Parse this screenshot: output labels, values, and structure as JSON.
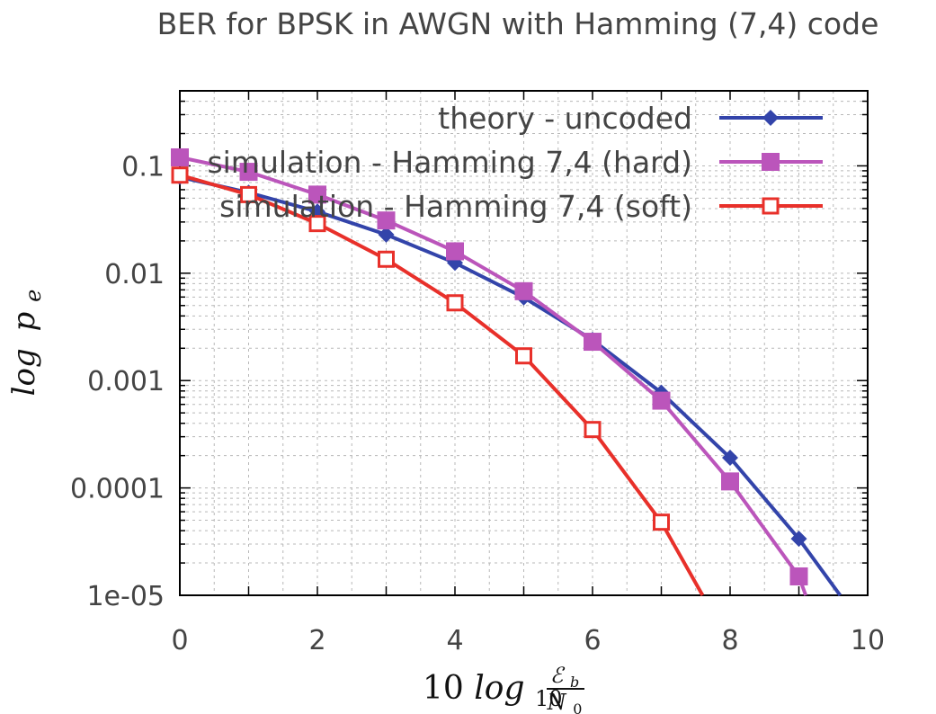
{
  "chart_data": {
    "type": "line",
    "title": "BER for BPSK in AWGN with Hamming (7,4) code",
    "xlabel": {
      "main": "10 ",
      "func": "log",
      "func_sub": "10",
      "frac_num": "ℰ",
      "frac_num_sub": "b",
      "frac_den": "N",
      "frac_den_sub": "0"
    },
    "ylabel": {
      "func": "log",
      "var": "p",
      "var_sub": "e"
    },
    "xlim": [
      0,
      10
    ],
    "ylim": [
      1e-05,
      0.5
    ],
    "yscale": "log",
    "grid": true,
    "legend_position": "top-right",
    "x_ticks": [
      "0",
      "2",
      "4",
      "6",
      "8",
      "10"
    ],
    "y_ticks": [
      {
        "value": 0.1,
        "label": "0.1"
      },
      {
        "value": 0.01,
        "label": "0.01"
      },
      {
        "value": 0.001,
        "label": "0.001"
      },
      {
        "value": 0.0001,
        "label": "0.0001"
      },
      {
        "value": 1e-05,
        "label": "1e-05"
      }
    ],
    "series": [
      {
        "name": "theory - uncoded",
        "color": "#3344aa",
        "marker": "diamond",
        "x": [
          0,
          1,
          2,
          3,
          4,
          5,
          6,
          7,
          8,
          9,
          9.6
        ],
        "y": [
          0.0786,
          0.0563,
          0.0375,
          0.0229,
          0.0125,
          0.00595,
          0.00239,
          0.000773,
          0.000191,
          3.36e-05,
          1e-05
        ],
        "marker_count": 10
      },
      {
        "name": "simulation - Hamming 7,4 (hard)",
        "color": "#bb55bb",
        "marker": "filled-square",
        "x": [
          0,
          1,
          2,
          3,
          4,
          5,
          6,
          7,
          8,
          9,
          9.1
        ],
        "y": [
          0.12,
          0.088,
          0.054,
          0.031,
          0.016,
          0.0068,
          0.0023,
          0.00065,
          0.000115,
          1.5e-05,
          1e-05
        ],
        "marker_count": 10
      },
      {
        "name": "simulation - Hamming 7,4 (soft)",
        "color": "#e8302a",
        "marker": "open-square",
        "x": [
          0,
          1,
          2,
          3,
          4,
          5,
          6,
          7,
          7.6
        ],
        "y": [
          0.082,
          0.054,
          0.029,
          0.0135,
          0.0053,
          0.0017,
          0.00035,
          4.8e-05,
          1e-05
        ],
        "marker_count": 8
      }
    ]
  }
}
